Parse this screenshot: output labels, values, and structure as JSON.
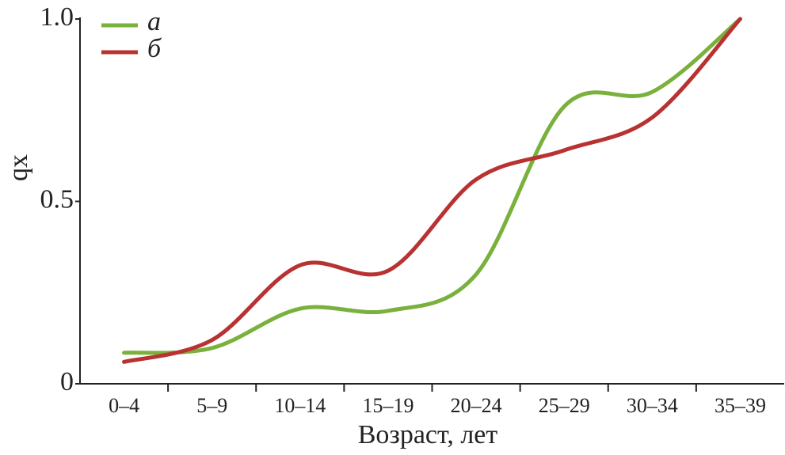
{
  "chart_data": {
    "type": "line",
    "categories": [
      "0–4",
      "5–9",
      "10–14",
      "15–19",
      "20–24",
      "25–29",
      "30–34",
      "35–39"
    ],
    "series": [
      {
        "name": "а",
        "color": "#7ab03c",
        "values": [
          0.085,
          0.098,
          0.206,
          0.2,
          0.3,
          0.76,
          0.8,
          1.0
        ]
      },
      {
        "name": "б",
        "color": "#b83232",
        "values": [
          0.06,
          0.12,
          0.325,
          0.31,
          0.56,
          0.64,
          0.73,
          1.0
        ]
      }
    ],
    "ylim": [
      0,
      1
    ],
    "yticks": [
      0,
      0.5,
      {
        "value": 1,
        "label": "1.0"
      }
    ],
    "x_label": "Возраст, лет",
    "y_label": "qx",
    "grid": false,
    "legend": "top-left"
  }
}
